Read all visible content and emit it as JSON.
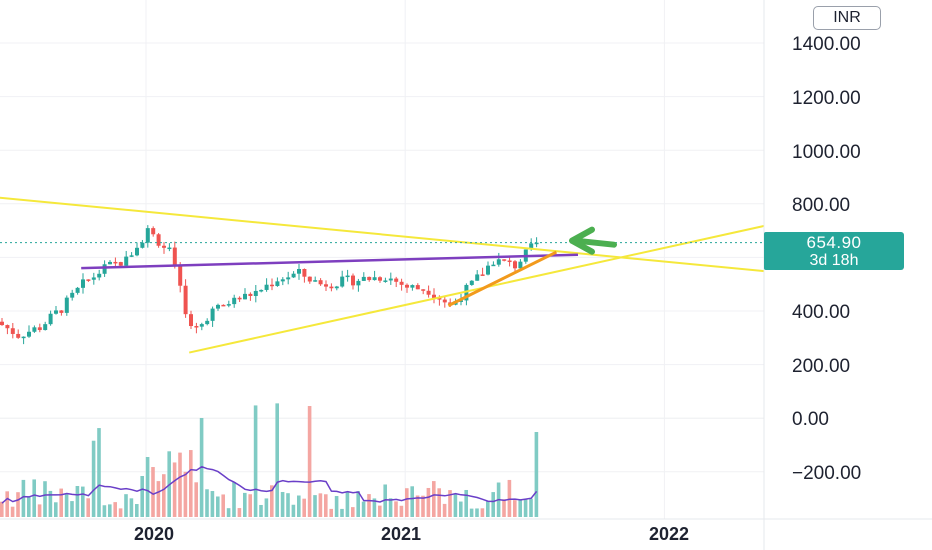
{
  "currency": "INR",
  "last_price": "654.90",
  "countdown": "3d 18h",
  "colors": {
    "up": "#26a69a",
    "down": "#ef5350",
    "up_volume": "#80cbc4",
    "down_volume": "#f4a6a2",
    "trendline_yellow": "#f5e83b",
    "trendline_purple": "#7e3fbf",
    "trendline_orange": "#f29a1c",
    "arrow": "#4caf50",
    "volume_ma": "#6a3fc8"
  },
  "chart_data": {
    "type": "candlestick",
    "symbol_currency": "INR",
    "y_ticks": [
      "1400.00",
      "1200.00",
      "1000.00",
      "800.00",
      "400.00",
      "200.00",
      "0.00",
      "−200.00"
    ],
    "x_ticks": [
      "2020",
      "2021",
      "2022"
    ],
    "last_price": 654.9,
    "weekly_close_approx": [
      {
        "date": "2019-06",
        "close": 360
      },
      {
        "date": "2019-07",
        "close": 310
      },
      {
        "date": "2019-08",
        "close": 340
      },
      {
        "date": "2019-09",
        "close": 410
      },
      {
        "date": "2019-10",
        "close": 500
      },
      {
        "date": "2019-11",
        "close": 560
      },
      {
        "date": "2019-12",
        "close": 590
      },
      {
        "date": "2020-01",
        "close": 700
      },
      {
        "date": "2020-02",
        "close": 620
      },
      {
        "date": "2020-03",
        "close": 330
      },
      {
        "date": "2020-04",
        "close": 400
      },
      {
        "date": "2020-05",
        "close": 440
      },
      {
        "date": "2020-06",
        "close": 470
      },
      {
        "date": "2020-07",
        "close": 520
      },
      {
        "date": "2020-08",
        "close": 540
      },
      {
        "date": "2020-09",
        "close": 500
      },
      {
        "date": "2020-10",
        "close": 510
      },
      {
        "date": "2020-11",
        "close": 520
      },
      {
        "date": "2020-12",
        "close": 530
      },
      {
        "date": "2021-01",
        "close": 490
      },
      {
        "date": "2021-02",
        "close": 480
      },
      {
        "date": "2021-03",
        "close": 420
      },
      {
        "date": "2021-04",
        "close": 500
      },
      {
        "date": "2021-05",
        "close": 590
      },
      {
        "date": "2021-06",
        "close": 570
      },
      {
        "date": "2021-07",
        "close": 654.9
      }
    ],
    "trendlines": [
      {
        "name": "",
        "color": "yellow",
        "from": {
          "date": "2019-04",
          "price": 840
        },
        "to": {
          "date": "2021-11",
          "price": 600
        }
      },
      {
        "name": "",
        "color": "yellow",
        "from": {
          "date": "2020-03",
          "price": 245
        },
        "to": {
          "date": "2021-11",
          "price": 600
        }
      },
      {
        "name": "",
        "color": "purple",
        "from": {
          "date": "2019-10",
          "price": 560
        },
        "to": {
          "date": "2021-09",
          "price": 610
        }
      },
      {
        "name": "",
        "color": "orange",
        "from": {
          "date": "2021-03",
          "price": 420
        },
        "to": {
          "date": "2021-08",
          "price": 620
        }
      }
    ],
    "volume_pane": true,
    "grid": true
  }
}
